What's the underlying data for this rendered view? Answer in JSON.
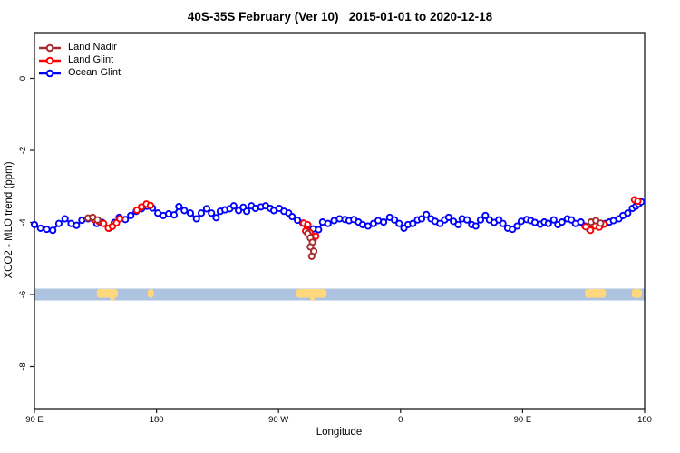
{
  "title": "40S-35S February (Ver 10)   2015-01-01 to 2020-12-18",
  "chart_data": {
    "type": "line",
    "title": "40S-35S February (Ver 10)   2015-01-01 to 2020-12-18",
    "xlabel": "Longitude",
    "ylabel": "XCO2 - MLO trend (ppm)",
    "x_axis": {
      "range_deg": [
        90,
        540
      ],
      "ticks": [
        {
          "pos": 90,
          "label": "90 E"
        },
        {
          "pos": 180,
          "label": "180"
        },
        {
          "pos": 270,
          "label": "90 W"
        },
        {
          "pos": 360,
          "label": "0"
        },
        {
          "pos": 450,
          "label": "90 E"
        },
        {
          "pos": 540,
          "label": "180"
        }
      ]
    },
    "y_axis": {
      "range": [
        -9.2,
        1.3
      ],
      "ticks": [
        {
          "v": 0,
          "label": "0"
        },
        {
          "v": -2,
          "label": "-2"
        },
        {
          "v": -4,
          "label": "-4"
        },
        {
          "v": -6,
          "label": "-6"
        },
        {
          "v": -8,
          "label": "-8"
        }
      ]
    },
    "map_band": {
      "center": -6,
      "ocean_color": "#ADC3DF",
      "land_color": "#FFD87E",
      "land_segments_deg": [
        [
          136,
          151.5
        ],
        [
          173.5,
          178
        ],
        [
          283,
          305.5
        ],
        [
          496,
          511.5
        ],
        [
          530.5,
          538
        ]
      ],
      "drips_deg": [
        147.5,
        295
      ]
    },
    "series": [
      {
        "name": "Land Nadir",
        "color": "#A52A2A",
        "segments": [
          [
            [
              129.5,
              -3.88
            ],
            [
              133,
              -3.86
            ],
            [
              136.5,
              -3.93
            ]
          ],
          [
            [
              291.5,
              -4.31
            ],
            [
              293.5,
              -4.43
            ],
            [
              295,
              -4.55
            ],
            [
              293.5,
              -4.68
            ],
            [
              296,
              -4.8
            ],
            [
              294.5,
              -4.94
            ]
          ],
          [
            [
              500.5,
              -3.99
            ],
            [
              504,
              -3.95
            ],
            [
              507.5,
              -4.02
            ]
          ]
        ]
      },
      {
        "name": "Land Glint",
        "color": "#FF0000",
        "segments": [
          [
            [
              134,
              -3.92
            ],
            [
              137.5,
              -3.97
            ],
            [
              141,
              -4.03
            ],
            [
              144.5,
              -4.16
            ],
            [
              147.5,
              -4.11
            ],
            [
              150.5,
              -4.01
            ],
            [
              153,
              -3.9
            ]
          ],
          [
            [
              165.5,
              -3.66
            ],
            [
              169,
              -3.57
            ],
            [
              172.5,
              -3.49
            ],
            [
              175.5,
              -3.53
            ]
          ],
          [
            [
              288.5,
              -4.02
            ],
            [
              290,
              -4.24
            ],
            [
              291.5,
              -4.06
            ],
            [
              293,
              -4.28
            ],
            [
              295.5,
              -4.5
            ],
            [
              297.5,
              -4.38
            ]
          ],
          [
            [
              496.5,
              -4.12
            ],
            [
              500,
              -4.22
            ],
            [
              503.5,
              -4.1
            ],
            [
              506.5,
              -4.13
            ],
            [
              510,
              -4.05
            ]
          ],
          [
            [
              532.5,
              -3.37
            ],
            [
              535,
              -3.41
            ]
          ]
        ]
      },
      {
        "name": "Ocean Glint",
        "color": "#0000FF",
        "segments": [
          [
            [
              90,
              -4.06
            ],
            [
              94.5,
              -4.16
            ],
            [
              99,
              -4.19
            ],
            [
              103.5,
              -4.22
            ],
            [
              108,
              -4.03
            ],
            [
              112.5,
              -3.9
            ],
            [
              117,
              -4.03
            ],
            [
              121,
              -4.08
            ],
            [
              125,
              -3.94
            ],
            [
              129.5,
              -3.9
            ],
            [
              133,
              -3.88
            ],
            [
              136,
              -4.03
            ],
            [
              140,
              -4.0
            ],
            [
              145,
              -4.16
            ],
            [
              149,
              -4.0
            ],
            [
              152.5,
              -3.86
            ],
            [
              157,
              -3.92
            ],
            [
              161,
              -3.81
            ],
            [
              165,
              -3.69
            ],
            [
              169,
              -3.62
            ],
            [
              173,
              -3.55
            ],
            [
              177,
              -3.6
            ],
            [
              181,
              -3.74
            ],
            [
              185,
              -3.81
            ],
            [
              189,
              -3.76
            ],
            [
              193,
              -3.79
            ],
            [
              196.5,
              -3.56
            ],
            [
              200.5,
              -3.67
            ],
            [
              205,
              -3.74
            ],
            [
              209.5,
              -3.9
            ],
            [
              213,
              -3.74
            ],
            [
              217,
              -3.62
            ],
            [
              220.5,
              -3.74
            ],
            [
              224,
              -3.87
            ],
            [
              227,
              -3.69
            ],
            [
              230.5,
              -3.65
            ],
            [
              234,
              -3.62
            ],
            [
              237,
              -3.54
            ],
            [
              240.5,
              -3.67
            ],
            [
              244,
              -3.58
            ],
            [
              246.5,
              -3.69
            ],
            [
              250,
              -3.54
            ],
            [
              253,
              -3.61
            ],
            [
              257,
              -3.57
            ],
            [
              260.5,
              -3.54
            ],
            [
              264,
              -3.61
            ],
            [
              266.5,
              -3.67
            ],
            [
              270.5,
              -3.61
            ],
            [
              274,
              -3.69
            ],
            [
              277.5,
              -3.74
            ],
            [
              280,
              -3.84
            ],
            [
              284,
              -3.94
            ],
            [
              288,
              -4.02
            ],
            [
              291.5,
              -4.1
            ],
            [
              295.5,
              -4.18
            ],
            [
              299.5,
              -4.2
            ],
            [
              302.5,
              -3.99
            ],
            [
              306.5,
              -4.03
            ],
            [
              311,
              -3.95
            ],
            [
              315,
              -3.9
            ],
            [
              319,
              -3.92
            ],
            [
              322,
              -3.95
            ],
            [
              325.5,
              -3.92
            ],
            [
              329,
              -3.99
            ],
            [
              332,
              -4.06
            ],
            [
              336,
              -4.1
            ],
            [
              340,
              -4.03
            ],
            [
              343.5,
              -3.95
            ],
            [
              347.5,
              -3.99
            ],
            [
              352,
              -3.86
            ],
            [
              355.5,
              -3.93
            ],
            [
              359,
              -4.03
            ],
            [
              362.5,
              -4.16
            ],
            [
              365.5,
              -4.06
            ],
            [
              369,
              -4.03
            ],
            [
              372.5,
              -3.93
            ],
            [
              375.5,
              -3.9
            ],
            [
              379,
              -3.78
            ],
            [
              382.5,
              -3.9
            ],
            [
              385.5,
              -3.97
            ],
            [
              389,
              -4.03
            ],
            [
              392.5,
              -3.93
            ],
            [
              395.5,
              -3.86
            ],
            [
              399,
              -3.97
            ],
            [
              402.5,
              -4.06
            ],
            [
              405.5,
              -3.9
            ],
            [
              409,
              -3.93
            ],
            [
              412.5,
              -4.06
            ],
            [
              415.5,
              -4.1
            ],
            [
              419,
              -3.93
            ],
            [
              422.5,
              -3.81
            ],
            [
              425.5,
              -3.93
            ],
            [
              429,
              -4.0
            ],
            [
              432.5,
              -3.93
            ],
            [
              435.5,
              -4.03
            ],
            [
              439,
              -4.16
            ],
            [
              442.5,
              -4.19
            ],
            [
              446,
              -4.1
            ],
            [
              449,
              -3.97
            ],
            [
              453,
              -3.92
            ],
            [
              456,
              -3.95
            ],
            [
              459,
              -4.0
            ],
            [
              463,
              -4.05
            ],
            [
              466,
              -3.99
            ],
            [
              469,
              -4.03
            ],
            [
              473,
              -3.93
            ],
            [
              476,
              -4.06
            ],
            [
              479,
              -3.99
            ],
            [
              483,
              -3.9
            ],
            [
              486,
              -3.93
            ],
            [
              489,
              -4.03
            ],
            [
              493,
              -3.99
            ],
            [
              496,
              -4.1
            ],
            [
              499.5,
              -4.2
            ],
            [
              503,
              -4.06
            ],
            [
              507,
              -4.1
            ],
            [
              511,
              -4.03
            ],
            [
              514,
              -3.99
            ],
            [
              517,
              -3.95
            ],
            [
              521,
              -3.9
            ],
            [
              524,
              -3.81
            ],
            [
              527.5,
              -3.74
            ],
            [
              531,
              -3.61
            ],
            [
              533.5,
              -3.55
            ],
            [
              535.5,
              -3.49
            ],
            [
              537.5,
              -3.43
            ]
          ]
        ]
      }
    ],
    "legend_position": "top-left",
    "grid": false
  }
}
